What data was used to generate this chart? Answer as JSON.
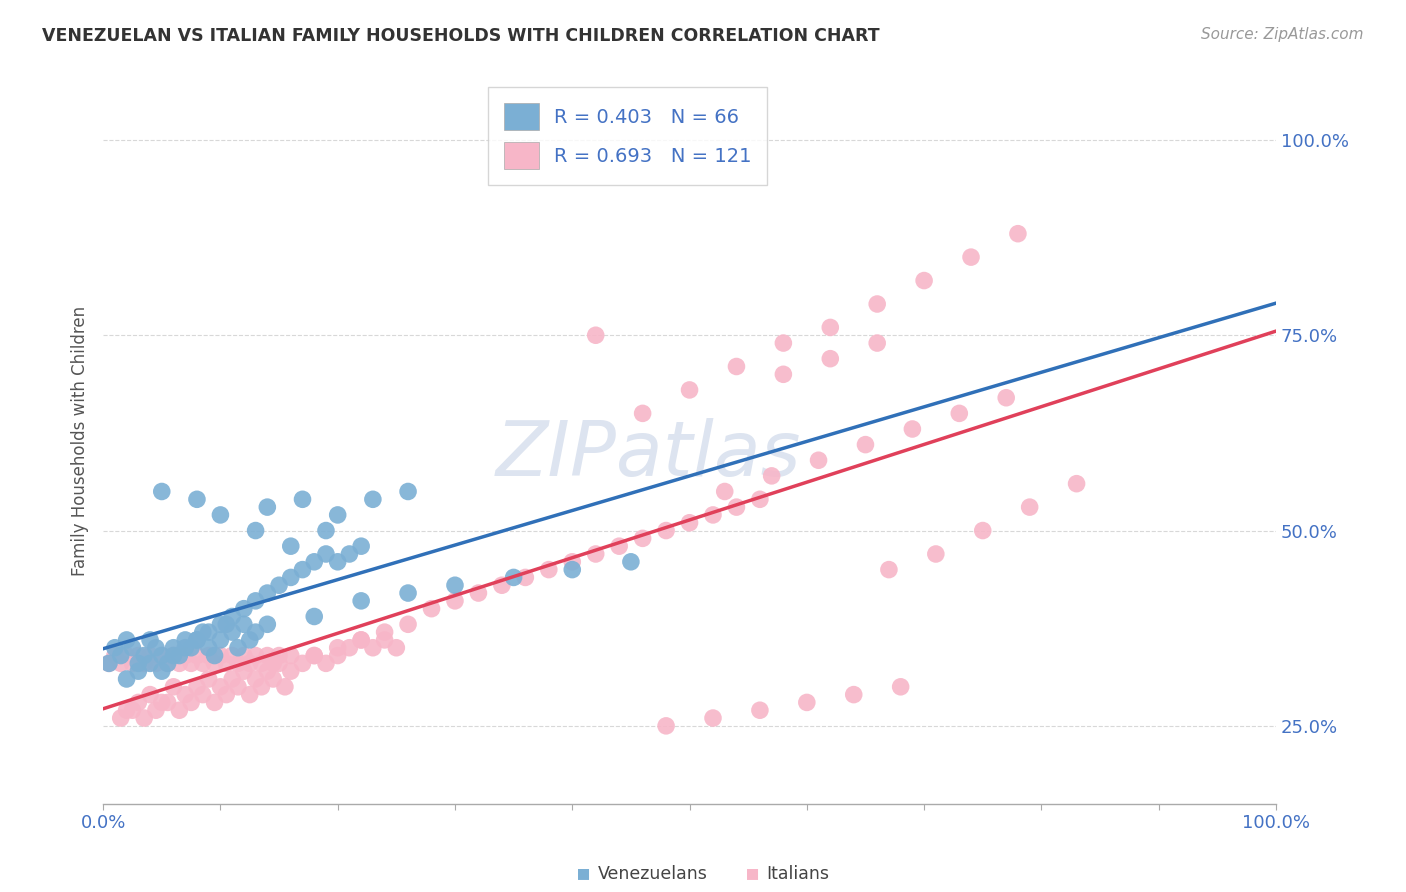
{
  "title": "VENEZUELAN VS ITALIAN FAMILY HOUSEHOLDS WITH CHILDREN CORRELATION CHART",
  "source": "Source: ZipAtlas.com",
  "ylabel": "Family Households with Children",
  "legend_venezuelans": "Venezuelans",
  "legend_italians": "Italians",
  "venezuelan_r": 0.403,
  "venezuelan_n": 66,
  "italian_r": 0.693,
  "italian_n": 121,
  "venezuelan_color": "#7bafd4",
  "italian_color": "#f7b6c8",
  "venezuelan_line_color": "#3070b8",
  "italian_line_color": "#e0405a",
  "background_color": "#ffffff",
  "venezuelan_points_x": [
    0.5,
    1.0,
    1.5,
    2.0,
    2.5,
    3.0,
    3.5,
    4.0,
    4.5,
    5.0,
    5.5,
    6.0,
    6.5,
    7.0,
    7.5,
    8.0,
    8.5,
    9.0,
    9.5,
    10.0,
    10.5,
    11.0,
    11.5,
    12.0,
    12.5,
    13.0,
    2.0,
    3.0,
    4.0,
    5.0,
    6.0,
    7.0,
    8.0,
    9.0,
    10.0,
    11.0,
    12.0,
    13.0,
    14.0,
    15.0,
    16.0,
    17.0,
    18.0,
    19.0,
    20.0,
    21.0,
    22.0,
    10.0,
    13.0,
    16.0,
    19.0,
    5.0,
    8.0,
    14.0,
    17.0,
    20.0,
    23.0,
    26.0,
    14.0,
    18.0,
    22.0,
    26.0,
    30.0,
    35.0,
    40.0,
    45.0
  ],
  "venezuelan_points_y": [
    33,
    35,
    34,
    36,
    35,
    33,
    34,
    36,
    35,
    34,
    33,
    35,
    34,
    36,
    35,
    36,
    37,
    35,
    34,
    36,
    38,
    37,
    35,
    38,
    36,
    37,
    31,
    32,
    33,
    32,
    34,
    35,
    36,
    37,
    38,
    39,
    40,
    41,
    42,
    43,
    44,
    45,
    46,
    47,
    46,
    47,
    48,
    52,
    50,
    48,
    50,
    55,
    54,
    53,
    54,
    52,
    54,
    55,
    38,
    39,
    41,
    42,
    43,
    44,
    45,
    46
  ],
  "italian_points_x": [
    0.5,
    1.0,
    1.5,
    2.0,
    2.5,
    3.0,
    3.5,
    4.0,
    4.5,
    5.0,
    5.5,
    6.0,
    6.5,
    7.0,
    7.5,
    8.0,
    8.5,
    9.0,
    9.5,
    10.0,
    10.5,
    11.0,
    11.5,
    12.0,
    12.5,
    13.0,
    13.5,
    14.0,
    14.5,
    15.0,
    2.0,
    3.0,
    4.0,
    5.0,
    6.0,
    7.0,
    8.0,
    9.0,
    10.0,
    11.0,
    12.0,
    13.0,
    14.0,
    15.0,
    16.0,
    17.0,
    18.0,
    19.0,
    20.0,
    21.0,
    22.0,
    23.0,
    24.0,
    25.0,
    1.5,
    2.5,
    3.5,
    4.5,
    5.5,
    6.5,
    7.5,
    8.5,
    9.5,
    10.5,
    11.5,
    12.5,
    13.5,
    14.5,
    15.5,
    16.0,
    18.0,
    20.0,
    22.0,
    24.0,
    26.0,
    28.0,
    30.0,
    32.0,
    34.0,
    36.0,
    38.0,
    40.0,
    42.0,
    44.0,
    46.0,
    48.0,
    50.0,
    52.0,
    54.0,
    56.0,
    48.0,
    52.0,
    56.0,
    60.0,
    64.0,
    68.0,
    53.0,
    57.0,
    61.0,
    65.0,
    69.0,
    73.0,
    77.0,
    67.0,
    71.0,
    75.0,
    79.0,
    83.0,
    58.0,
    62.0,
    66.0,
    42.0,
    46.0,
    50.0,
    54.0,
    58.0,
    62.0,
    66.0,
    70.0,
    74.0,
    78.0
  ],
  "italian_points_y": [
    33,
    34,
    33,
    34,
    33,
    34,
    33,
    34,
    33,
    34,
    33,
    34,
    33,
    34,
    33,
    34,
    33,
    34,
    33,
    34,
    33,
    34,
    33,
    34,
    33,
    34,
    33,
    34,
    33,
    34,
    27,
    28,
    29,
    28,
    30,
    29,
    30,
    31,
    30,
    31,
    32,
    31,
    32,
    33,
    34,
    33,
    34,
    33,
    34,
    35,
    36,
    35,
    36,
    35,
    26,
    27,
    26,
    27,
    28,
    27,
    28,
    29,
    28,
    29,
    30,
    29,
    30,
    31,
    30,
    32,
    34,
    35,
    36,
    37,
    38,
    40,
    41,
    42,
    43,
    44,
    45,
    46,
    47,
    48,
    49,
    50,
    51,
    52,
    53,
    54,
    25,
    26,
    27,
    28,
    29,
    30,
    55,
    57,
    59,
    61,
    63,
    65,
    67,
    45,
    47,
    50,
    53,
    56,
    70,
    72,
    74,
    75,
    65,
    68,
    71,
    74,
    76,
    79,
    82,
    85,
    88
  ],
  "xlim": [
    0,
    100
  ],
  "ylim": [
    15,
    108
  ],
  "ytick_positions": [
    25,
    50,
    75,
    100
  ],
  "ytick_labels": [
    "25.0%",
    "50.0%",
    "75.0%",
    "100.0%"
  ],
  "grid_color": "#d8d8d8",
  "axis_color": "#aaaaaa",
  "tick_color": "#4472c4",
  "title_color": "#333333",
  "source_color": "#999999",
  "watermark_color": "#dde4f0",
  "watermark_text": "ZIPatlas"
}
